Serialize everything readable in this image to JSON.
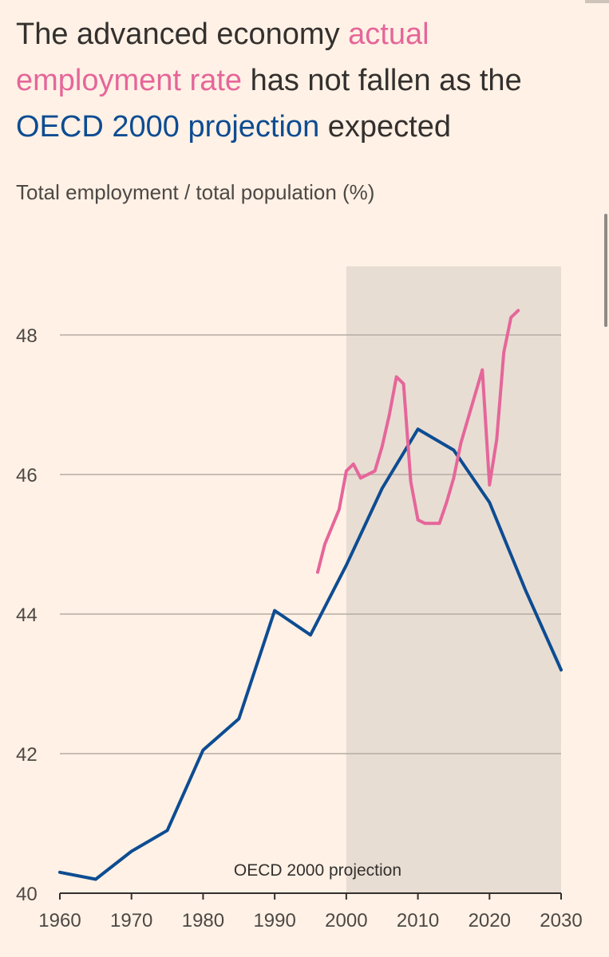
{
  "headline": {
    "part1": "The advanced economy ",
    "actual": "actual employment rate",
    "part2": " has not fallen as the ",
    "oecd": "OECD 2000 projection",
    "part3": " expected"
  },
  "colors": {
    "actual": "#e5669a",
    "oecd": "#0d4c92",
    "shade": "#e8ddd3",
    "grid": "#b5aca4",
    "background": "#fff1e5"
  },
  "chart_data": {
    "type": "line",
    "ylabel": "Total employment / total population (%)",
    "xlim": [
      1960,
      2030
    ],
    "ylim": [
      40,
      49
    ],
    "x_ticks": [
      1960,
      1970,
      1980,
      1990,
      2000,
      2010,
      2020,
      2030
    ],
    "y_ticks": [
      40,
      42,
      44,
      46,
      48
    ],
    "shaded_region": {
      "from": 2000,
      "to": 2030
    },
    "grid": true,
    "series": [
      {
        "name": "OECD 2000 projection",
        "color": "#0d4c92",
        "points": [
          [
            1960,
            40.3
          ],
          [
            1965,
            40.2
          ],
          [
            1970,
            40.6
          ],
          [
            1975,
            40.9
          ],
          [
            1980,
            42.05
          ],
          [
            1985,
            42.5
          ],
          [
            1990,
            44.05
          ],
          [
            1995,
            43.7
          ],
          [
            2000,
            44.7
          ],
          [
            2005,
            45.8
          ],
          [
            2010,
            46.65
          ],
          [
            2015,
            46.35
          ],
          [
            2020,
            45.6
          ],
          [
            2025,
            44.35
          ],
          [
            2030,
            43.2
          ]
        ]
      },
      {
        "name": "actual employment rate",
        "color": "#e5669a",
        "points": [
          [
            1996,
            44.6
          ],
          [
            1997,
            45.0
          ],
          [
            1999,
            45.5
          ],
          [
            2000,
            46.05
          ],
          [
            2001,
            46.15
          ],
          [
            2002,
            45.95
          ],
          [
            2004,
            46.05
          ],
          [
            2005,
            46.4
          ],
          [
            2006,
            46.85
          ],
          [
            2007,
            47.4
          ],
          [
            2008,
            47.3
          ],
          [
            2009,
            45.9
          ],
          [
            2010,
            45.35
          ],
          [
            2011,
            45.3
          ],
          [
            2013,
            45.3
          ],
          [
            2014,
            45.6
          ],
          [
            2015,
            45.95
          ],
          [
            2016,
            46.45
          ],
          [
            2018,
            47.15
          ],
          [
            2019,
            47.5
          ],
          [
            2020,
            45.85
          ],
          [
            2021,
            46.5
          ],
          [
            2022,
            47.75
          ],
          [
            2023,
            48.25
          ],
          [
            2024,
            48.35
          ]
        ]
      }
    ]
  }
}
